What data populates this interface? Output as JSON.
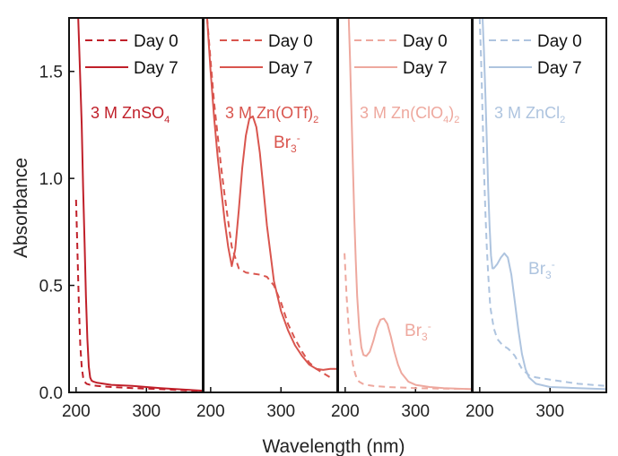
{
  "figure": {
    "ylabel": "Absorbance",
    "xlabel": "Wavelength (nm)"
  },
  "chart_data": [
    {
      "type": "line",
      "title": "3 M ZnSO₄",
      "color": "#c0202a",
      "xlabel": "Wavelength (nm)",
      "ylabel": "Absorbance",
      "xlim": [
        190,
        380
      ],
      "ylim": [
        0,
        1.75
      ],
      "xticks": [
        200,
        300
      ],
      "yticks": [
        0.0,
        0.5,
        1.0,
        1.5
      ],
      "ytick_labels": [
        "0.0",
        "0.5",
        "1.0",
        "1.5"
      ],
      "legend": "top-right",
      "annotation": "",
      "series": [
        {
          "name": "Day 0",
          "style": "dashed",
          "x": [
            200,
            202,
            204,
            206,
            208,
            210,
            212,
            215,
            220,
            230,
            250,
            280,
            320,
            380
          ],
          "y": [
            0.9,
            0.65,
            0.4,
            0.22,
            0.12,
            0.07,
            0.05,
            0.04,
            0.035,
            0.03,
            0.025,
            0.02,
            0.015,
            0.005
          ]
        },
        {
          "name": "Day 7",
          "style": "solid",
          "x": [
            203,
            205,
            208,
            210,
            212,
            214,
            216,
            218,
            220,
            222,
            225,
            230,
            250,
            280,
            320,
            380
          ],
          "y": [
            1.75,
            1.55,
            1.25,
            0.95,
            0.7,
            0.45,
            0.25,
            0.12,
            0.07,
            0.055,
            0.05,
            0.045,
            0.035,
            0.03,
            0.02,
            0.008
          ]
        }
      ]
    },
    {
      "type": "line",
      "title": "3 M Zn(OTf)₂",
      "color": "#d9554e",
      "xlabel": "Wavelength (nm)",
      "ylim": [
        0,
        1.75
      ],
      "xlim": [
        190,
        380
      ],
      "xticks": [
        200,
        300
      ],
      "legend": "top-right",
      "annotation": "Br₃⁻",
      "series": [
        {
          "name": "Day 0",
          "style": "dashed",
          "x": [
            195,
            200,
            205,
            210,
            215,
            220,
            225,
            230,
            240,
            250,
            260,
            270,
            280,
            290,
            300,
            310,
            320,
            330,
            340,
            350,
            360,
            370
          ],
          "y": [
            1.75,
            1.55,
            1.35,
            1.2,
            1.05,
            0.92,
            0.8,
            0.68,
            0.58,
            0.56,
            0.555,
            0.55,
            0.54,
            0.5,
            0.42,
            0.32,
            0.25,
            0.19,
            0.14,
            0.11,
            0.09,
            0.07
          ]
        },
        {
          "name": "Day 7",
          "style": "solid",
          "x": [
            195,
            200,
            205,
            210,
            215,
            220,
            225,
            230,
            235,
            240,
            245,
            250,
            255,
            260,
            265,
            270,
            275,
            280,
            290,
            300,
            310,
            320,
            330,
            340,
            350,
            360,
            370,
            380
          ],
          "y": [
            1.75,
            1.5,
            1.28,
            1.1,
            0.95,
            0.8,
            0.68,
            0.59,
            0.67,
            0.85,
            1.05,
            1.2,
            1.28,
            1.29,
            1.24,
            1.12,
            0.95,
            0.78,
            0.52,
            0.38,
            0.29,
            0.22,
            0.17,
            0.13,
            0.11,
            0.105,
            0.11,
            0.11
          ]
        }
      ]
    },
    {
      "type": "line",
      "title": "3 M Zn(ClO₄)₂",
      "color": "#eea89e",
      "xlabel": "Wavelength (nm)",
      "ylim": [
        0,
        1.75
      ],
      "xlim": [
        190,
        380
      ],
      "xticks": [
        200,
        300
      ],
      "legend": "top-right",
      "annotation": "Br₃⁻",
      "series": [
        {
          "name": "Day 0",
          "style": "dashed",
          "x": [
            199,
            202,
            205,
            208,
            211,
            214,
            217,
            220,
            225,
            230,
            240,
            260,
            300,
            380
          ],
          "y": [
            0.65,
            0.45,
            0.3,
            0.2,
            0.13,
            0.09,
            0.06,
            0.05,
            0.04,
            0.035,
            0.03,
            0.025,
            0.02,
            0.015
          ]
        },
        {
          "name": "Day 7",
          "style": "solid",
          "x": [
            205,
            207,
            209,
            211,
            213,
            215,
            217,
            220,
            223,
            226,
            230,
            235,
            240,
            245,
            250,
            255,
            260,
            265,
            270,
            275,
            280,
            290,
            300,
            320,
            340,
            380
          ],
          "y": [
            1.75,
            1.55,
            1.3,
            1.05,
            0.82,
            0.62,
            0.45,
            0.3,
            0.21,
            0.175,
            0.17,
            0.19,
            0.24,
            0.3,
            0.34,
            0.345,
            0.32,
            0.26,
            0.19,
            0.13,
            0.09,
            0.05,
            0.035,
            0.025,
            0.02,
            0.015
          ]
        }
      ]
    },
    {
      "type": "line",
      "title": "3 M ZnCl₂",
      "color": "#aec4df",
      "xlabel": "Wavelength (nm)",
      "ylim": [
        0,
        1.75
      ],
      "xlim": [
        190,
        380
      ],
      "xticks": [
        200,
        300
      ],
      "legend": "top-right",
      "annotation": "Br₃⁻",
      "series": [
        {
          "name": "Day 0",
          "style": "dashed",
          "x": [
            200,
            202,
            204,
            206,
            208,
            210,
            212,
            215,
            220,
            225,
            230,
            235,
            240,
            245,
            250,
            255,
            260,
            270,
            280,
            300,
            320,
            340,
            360,
            380
          ],
          "y": [
            1.75,
            1.55,
            1.3,
            1.05,
            0.85,
            0.68,
            0.55,
            0.4,
            0.3,
            0.25,
            0.23,
            0.215,
            0.205,
            0.19,
            0.17,
            0.14,
            0.11,
            0.08,
            0.07,
            0.06,
            0.05,
            0.04,
            0.035,
            0.03
          ]
        },
        {
          "name": "Day 7",
          "style": "solid",
          "x": [
            204,
            206,
            208,
            210,
            212,
            214,
            216,
            218,
            220,
            225,
            230,
            235,
            240,
            245,
            250,
            255,
            260,
            265,
            270,
            280,
            300,
            340,
            380
          ],
          "y": [
            1.75,
            1.6,
            1.4,
            1.18,
            0.95,
            0.78,
            0.64,
            0.58,
            0.58,
            0.6,
            0.63,
            0.65,
            0.63,
            0.55,
            0.42,
            0.29,
            0.18,
            0.11,
            0.07,
            0.04,
            0.025,
            0.02,
            0.015
          ]
        }
      ]
    }
  ]
}
